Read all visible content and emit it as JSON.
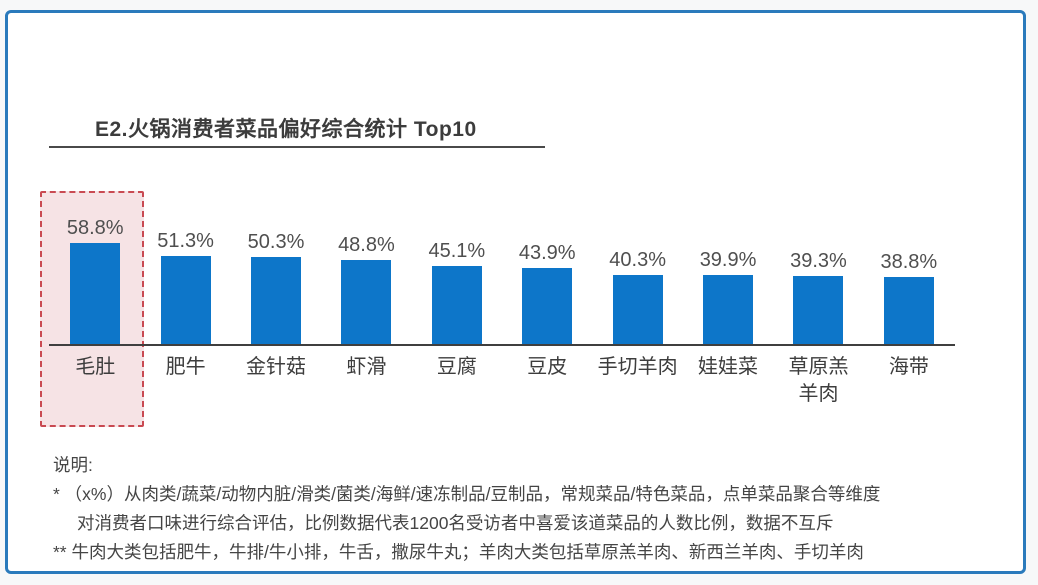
{
  "chart_data": {
    "type": "bar",
    "title": "E2.火锅消费者菜品偏好综合统计 Top10",
    "categories": [
      "毛肚",
      "肥牛",
      "金针菇",
      "虾滑",
      "豆腐",
      "豆皮",
      "手切羊肉",
      "娃娃菜",
      "草原羔羊肉",
      "海带"
    ],
    "categories_display": [
      "毛肚",
      "肥牛",
      "金针菇",
      "虾滑",
      "豆腐",
      "豆皮",
      "手切羊肉",
      "娃娃菜",
      "草原羔\n羊肉",
      "海带"
    ],
    "values": [
      58.8,
      51.3,
      50.3,
      48.8,
      45.1,
      43.9,
      40.3,
      39.9,
      39.3,
      38.8
    ],
    "value_labels": [
      "58.8%",
      "51.3%",
      "50.3%",
      "48.8%",
      "45.1%",
      "43.9%",
      "40.3%",
      "39.9%",
      "39.3%",
      "38.8%"
    ],
    "xlabel": "",
    "ylabel": "",
    "ylim": [
      0,
      65
    ],
    "grid": false,
    "legend": false,
    "highlighted_category": "毛肚",
    "bar_color": "#0d76c9",
    "highlight_border_color": "#c94a52",
    "highlight_fill_color": "#f6e3e5",
    "card_border_color": "#2a7abc"
  },
  "notes": {
    "heading": "说明:",
    "lines": [
      {
        "text": "*  （x%）从肉类/蔬菜/动物内脏/滑类/菌类/海鲜/速冻制品/豆制品，常规菜品/特色菜品，点单菜品聚合等维度",
        "indent": false
      },
      {
        "text": "对消费者口味进行综合评估，比例数据代表1200名受访者中喜爱该道菜品的人数比例，数据不互斥",
        "indent": true
      },
      {
        "text": "** 牛肉大类包括肥牛，牛排/牛小排，牛舌，撒尿牛丸；羊肉大类包括草原羔羊肉、新西兰羊肉、手切羊肉",
        "indent": false
      }
    ]
  }
}
